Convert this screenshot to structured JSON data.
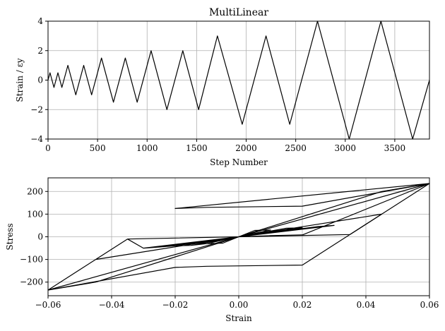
{
  "chart_data": [
    {
      "type": "line",
      "title": "MultiLinear",
      "xlabel": "Step Number",
      "ylabel": "Strain / εy",
      "xlim": [
        0,
        3850
      ],
      "ylim": [
        -4,
        4
      ],
      "grid": true,
      "xticks": [
        0,
        500,
        1000,
        1500,
        2000,
        2500,
        3000,
        3500
      ],
      "yticks": [
        -4,
        -2,
        0,
        2,
        4
      ],
      "xtick_labels": [
        "0",
        "500",
        "1000",
        "1500",
        "2000",
        "2500",
        "3000",
        "3500"
      ],
      "ytick_labels": [
        "−4",
        "−2",
        "0",
        "2",
        "4"
      ],
      "series": [
        {
          "color": "#000000",
          "x": [
            0,
            20,
            60,
            100,
            140,
            200,
            280,
            360,
            440,
            540,
            660,
            780,
            900,
            1040,
            1200,
            1360,
            1520,
            1710,
            1960,
            2200,
            2440,
            2720,
            3040,
            3360,
            3680,
            3850
          ],
          "y": [
            0,
            0.5,
            -0.5,
            0.5,
            -0.5,
            1,
            -1,
            1,
            -1,
            1.5,
            -1.5,
            1.5,
            -1.5,
            2,
            -2,
            2,
            -2,
            3,
            -3,
            3,
            -3,
            4,
            -4,
            4,
            -4,
            0
          ]
        }
      ]
    },
    {
      "type": "line",
      "title": "",
      "xlabel": "Strain",
      "ylabel": "Stress",
      "xlim": [
        -0.06,
        0.06
      ],
      "ylim": [
        -260,
        260
      ],
      "grid": true,
      "xticks": [
        -0.06,
        -0.04,
        -0.02,
        0,
        0.02,
        0.04,
        0.06
      ],
      "yticks": [
        -200,
        -100,
        0,
        100,
        200
      ],
      "xtick_labels": [
        "−0.06",
        "−0.04",
        "−0.02",
        "0.00",
        "0.02",
        "0.04",
        "0.06"
      ],
      "ytick_labels": [
        "−200",
        "−100",
        "0",
        "100",
        "200"
      ],
      "series": [
        {
          "color": "#000000",
          "x": [
            0,
            0.01,
            0.02,
            0.06,
            -0.02,
            -0.01,
            0.02,
            0.06,
            -0.06,
            -0.045,
            0.045,
            0.035,
            -0.035,
            -0.045,
            0.045,
            0.035,
            -0.035,
            -0.03,
            0.03,
            0.025,
            -0.025,
            -0.03,
            0.03,
            0.025,
            -0.025,
            -0.02,
            0.02,
            0.015,
            -0.015,
            -0.02,
            0.02,
            0.015,
            -0.015,
            -0.01,
            0.01,
            0.005,
            -0.005,
            -0.01,
            0.01,
            0.005,
            -0.005,
            0
          ],
          "y": [
            0,
            5,
            8,
            235,
            125,
            130,
            135,
            235,
            -235,
            -100,
            100,
            10,
            -10,
            -100,
            100,
            10,
            -10,
            -50,
            50,
            45,
            -45,
            -50,
            50,
            45,
            -45,
            -40,
            40,
            38,
            -38,
            -40,
            40,
            38,
            -38,
            -30,
            30,
            28,
            -28,
            -30,
            30,
            28,
            -28,
            0
          ]
        },
        {
          "color": "#000000",
          "x": [
            -0.06,
            -0.02,
            -0.01,
            0.02,
            0.06,
            0.045,
            -0.045,
            -0.06
          ],
          "y": [
            -235,
            -135,
            -130,
            -125,
            235,
            200,
            -200,
            -235
          ]
        }
      ]
    }
  ]
}
